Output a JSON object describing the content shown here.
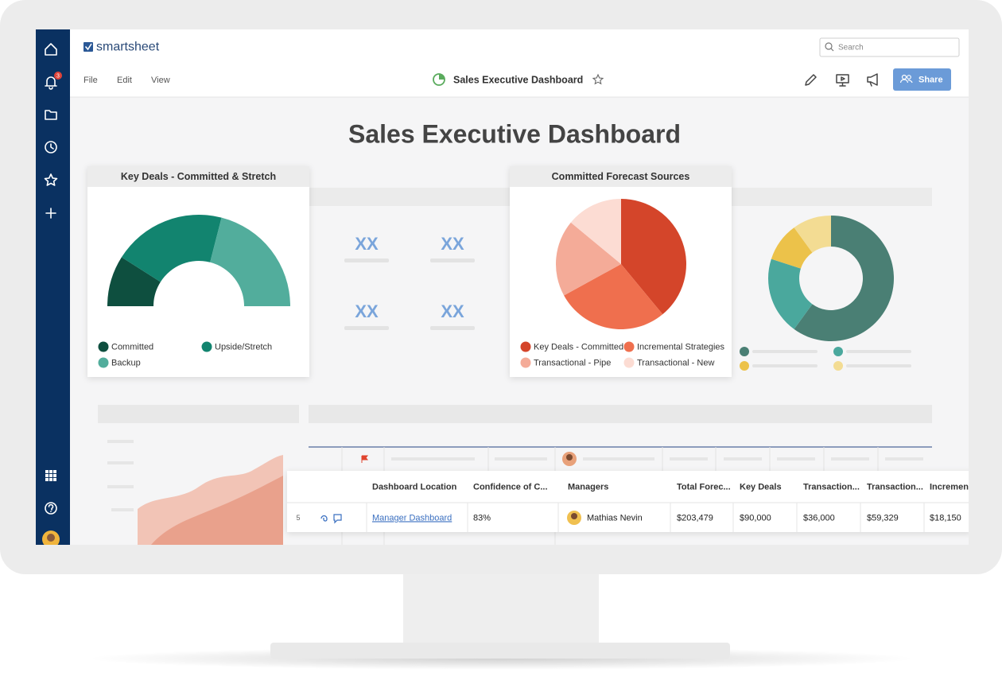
{
  "app": {
    "logo": "smartsheet",
    "search_placeholder": "Search",
    "notification_count": 3,
    "menu": [
      "File",
      "Edit",
      "View"
    ],
    "sheet_title": "Sales Executive Dashboard",
    "share": "Share"
  },
  "dashboard": {
    "title": "Sales Executive Dashboard",
    "widgets": [
      {
        "type": "gauge",
        "title": "Key Deals - Committed & Stretch",
        "series": [
          {
            "name": "Committed",
            "color": "#0e4f3f",
            "value": 18
          },
          {
            "name": "Upside/Stretch",
            "color": "#12846f",
            "value": 40
          },
          {
            "name": "Backup",
            "color": "#52ad9c",
            "value": 42
          }
        ]
      },
      {
        "type": "pie",
        "title": "Committed Forecast Sources",
        "series": [
          {
            "name": "Key Deals - Committed",
            "color": "#d4452a",
            "value": 39
          },
          {
            "name": "Incremental Strategies",
            "color": "#ef6f4e",
            "value": 28
          },
          {
            "name": "Transactional - Pipe",
            "color": "#f4ab98",
            "value": 19
          },
          {
            "name": "Transactional - New",
            "color": "#fcdcd3",
            "value": 14
          }
        ]
      },
      {
        "type": "donut",
        "series": [
          {
            "color": "#4a7f74",
            "value": 60
          },
          {
            "color": "#4aa89d",
            "value": 20
          },
          {
            "color": "#ecc24a",
            "value": 10
          },
          {
            "color": "#f3dc93",
            "value": 10
          }
        ]
      }
    ],
    "placeholders": [
      "XX",
      "XX",
      "XX",
      "XX"
    ]
  },
  "table": {
    "columns": [
      "Dashboard Location",
      "Confidence of C...",
      "Managers",
      "Total Forec...",
      "Key Deals",
      "Transaction...",
      "Transaction...",
      "Incremen"
    ],
    "rows": [
      {
        "row_number": 5,
        "cells": [
          "Manager Dashboard",
          "83%",
          "Mathias Nevin",
          "$203,479",
          "$90,000",
          "$36,000",
          "$59,329",
          "$18,150"
        ]
      }
    ]
  }
}
